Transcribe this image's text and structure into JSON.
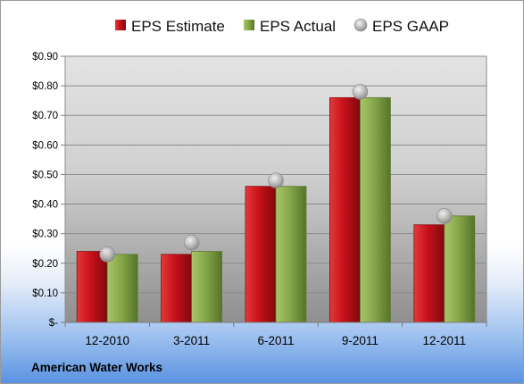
{
  "chart_data": {
    "type": "bar",
    "categories": [
      "12-2010",
      "3-2011",
      "6-2011",
      "9-2011",
      "12-2011"
    ],
    "series": [
      {
        "name": "EPS Estimate",
        "values": [
          0.24,
          0.23,
          0.46,
          0.76,
          0.33
        ],
        "color": "#c8101a"
      },
      {
        "name": "EPS Actual",
        "values": [
          0.23,
          0.24,
          0.46,
          0.76,
          0.36
        ],
        "color": "#86a84a"
      }
    ],
    "markers": {
      "name": "EPS GAAP",
      "values": [
        0.23,
        0.27,
        0.48,
        0.78,
        0.36
      ],
      "color": "#b5b5b5"
    },
    "ylim": [
      0,
      0.9
    ],
    "y_ticks": [
      "$-",
      "$0.10",
      "$0.20",
      "$0.30",
      "$0.40",
      "$0.50",
      "$0.60",
      "$0.70",
      "$0.80",
      "$0.90"
    ],
    "legend_position": "top",
    "grid": true,
    "xlabel": "",
    "ylabel": "",
    "caption": "American Water Works"
  }
}
